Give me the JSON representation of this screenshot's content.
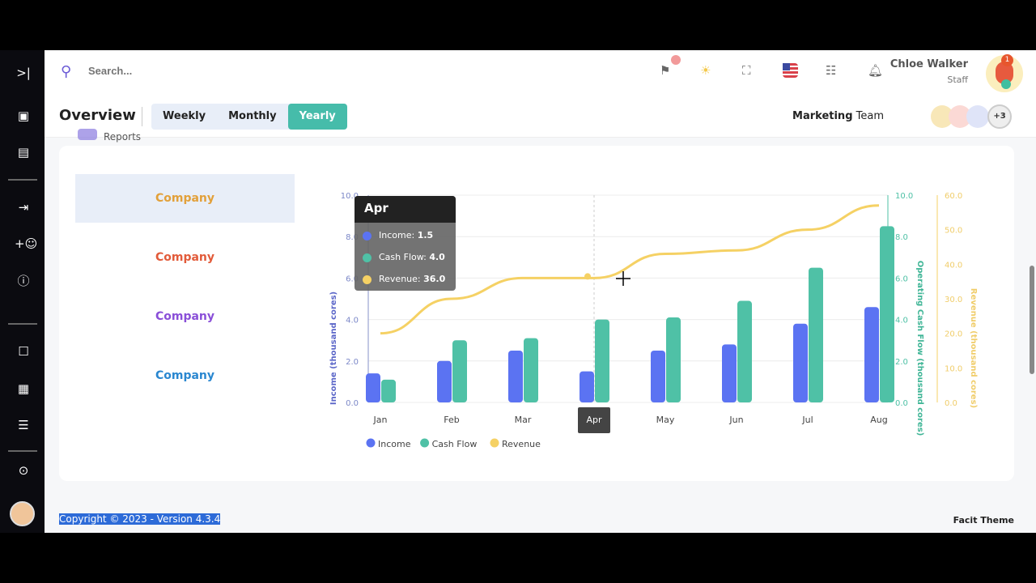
{
  "search": {
    "placeholder": "Search..."
  },
  "user": {
    "name": "Chloe Walker",
    "role": "Staff",
    "badge": "1"
  },
  "header": {
    "title": "Overview",
    "tabs": [
      {
        "label": "Weekly"
      },
      {
        "label": "Monthly"
      },
      {
        "label": "Yearly",
        "active": true
      }
    ],
    "team_bold": "Marketing",
    "team_rest": " Team",
    "team_more": "+3"
  },
  "reports_label": "Reports",
  "companies": [
    {
      "name": "Company",
      "color": "#e2a03a"
    },
    {
      "name": "Company",
      "color": "#e25b3a"
    },
    {
      "name": "Company",
      "color": "#8a4fd8"
    },
    {
      "name": "Company",
      "color": "#2a87d0"
    }
  ],
  "footer": {
    "copyright": "Copyright © 2023 - Version 4.3.4",
    "theme": "Facit Theme"
  },
  "tooltip": {
    "title": "Apr",
    "rows": [
      {
        "label": "Income:",
        "value": "1.5"
      },
      {
        "label": "Cash Flow:",
        "value": "4.0"
      },
      {
        "label": "Revenue:",
        "value": "36.0"
      }
    ]
  },
  "chart_data": {
    "type": "bar",
    "categories": [
      "Jan",
      "Feb",
      "Mar",
      "Apr",
      "May",
      "Jun",
      "Jul",
      "Aug"
    ],
    "series": [
      {
        "name": "Income",
        "type": "bar",
        "axis": "left",
        "color": "#5b73f2",
        "values": [
          1.4,
          2.0,
          2.5,
          1.5,
          2.5,
          2.8,
          3.8,
          4.6
        ]
      },
      {
        "name": "Cash Flow",
        "type": "bar",
        "axis": "right1",
        "color": "#4fc1a6",
        "values": [
          1.1,
          3.0,
          3.1,
          4.0,
          4.1,
          4.9,
          6.5,
          8.5
        ]
      },
      {
        "name": "Revenue",
        "type": "line",
        "axis": "right2",
        "color": "#f5d164",
        "values": [
          20,
          30,
          36,
          36,
          43,
          44,
          50,
          57
        ]
      }
    ],
    "axes": {
      "left": {
        "label": "Income (thousand cores)",
        "range": [
          0,
          10
        ],
        "ticks": [
          "0.0",
          "2.0",
          "4.0",
          "6.0",
          "8.0",
          "10.0"
        ]
      },
      "right1": {
        "label": "Operating Cash Flow (thousand cores)",
        "range": [
          0,
          10
        ],
        "ticks": [
          "0.0",
          "2.0",
          "4.0",
          "6.0",
          "8.0",
          "10.0"
        ]
      },
      "right2": {
        "label": "Revenue (thousand cores)",
        "range": [
          0,
          60
        ],
        "ticks": [
          "0.0",
          "10.0",
          "20.0",
          "30.0",
          "40.0",
          "50.0",
          "60.0"
        ]
      }
    },
    "legend": "bottom-left",
    "grid": true,
    "hover_category": "Apr"
  }
}
